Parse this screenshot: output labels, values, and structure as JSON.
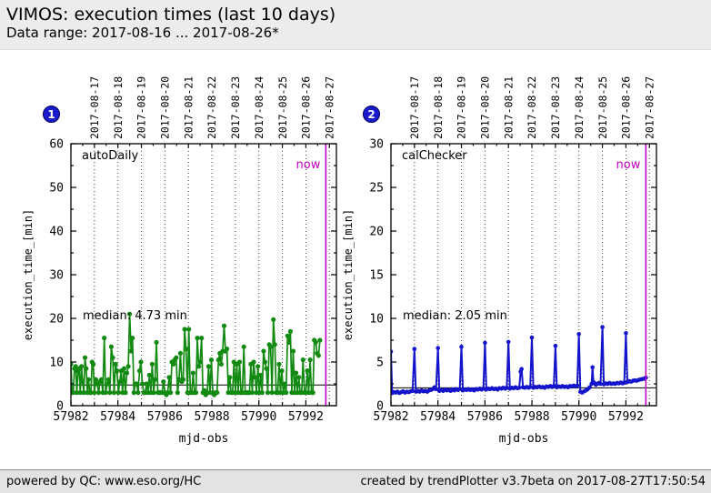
{
  "header": {
    "title": "VIMOS: execution times (last 10 days)",
    "subtitle": "Data range: 2017-08-16 ... 2017-08-26*"
  },
  "footer": {
    "left": "powered by QC: www.eso.org/HC",
    "right": "created by trendPlotter v3.7beta on 2017-08-27T17:50:54"
  },
  "ui": {
    "band_bg": "#ececec",
    "footer_bg": "#e3e3e3",
    "badge_color": "#1a1acc",
    "now_color": "#bf00bf",
    "green": "#128a12",
    "blue": "#1414cc"
  },
  "chart_data": [
    {
      "type": "line",
      "badge": "1",
      "series_label": "autoDaily",
      "xlabel": "mjd-obs",
      "ylabel": "execution_time_[min]",
      "xlim": [
        57982,
        57993.3
      ],
      "ylim": [
        0,
        60
      ],
      "ytick_step": 10,
      "xtick_values": [
        57982,
        57984,
        57986,
        57988,
        57990,
        57992
      ],
      "date_labels": [
        "2017-08-17",
        "2017-08-18",
        "2017-08-19",
        "2017-08-20",
        "2017-08-21",
        "2017-08-22",
        "2017-08-23",
        "2017-08-24",
        "2017-08-25",
        "2017-08-26",
        "2017-08-27"
      ],
      "median_value": 4.73,
      "median_text": "median: 4.73 min",
      "now_text": "now",
      "now_x": 57992.85,
      "line_color": "#128a12",
      "grid": "vertical-dotted",
      "points": [
        [
          57982.0,
          9.5
        ],
        [
          57982.05,
          3
        ],
        [
          57982.1,
          3
        ],
        [
          57982.15,
          8.5
        ],
        [
          57982.2,
          9
        ],
        [
          57982.25,
          3
        ],
        [
          57982.3,
          8
        ],
        [
          57982.35,
          8.5
        ],
        [
          57982.4,
          3
        ],
        [
          57982.45,
          9
        ],
        [
          57982.5,
          5.5
        ],
        [
          57982.55,
          3
        ],
        [
          57982.6,
          11
        ],
        [
          57982.65,
          8.5
        ],
        [
          57982.7,
          3
        ],
        [
          57982.75,
          6
        ],
        [
          57982.8,
          3
        ],
        [
          57982.85,
          3
        ],
        [
          57982.9,
          10
        ],
        [
          57982.95,
          9.5
        ],
        [
          57983.0,
          3
        ],
        [
          57983.06,
          6
        ],
        [
          57983.12,
          5
        ],
        [
          57983.18,
          3
        ],
        [
          57983.24,
          5.5
        ],
        [
          57983.3,
          6
        ],
        [
          57983.36,
          3
        ],
        [
          57983.42,
          15.5
        ],
        [
          57983.48,
          3
        ],
        [
          57983.54,
          5
        ],
        [
          57983.6,
          6
        ],
        [
          57983.66,
          3
        ],
        [
          57983.72,
          13.5
        ],
        [
          57983.78,
          11
        ],
        [
          57983.84,
          3
        ],
        [
          57983.9,
          9.5
        ],
        [
          57983.96,
          8
        ],
        [
          57984.02,
          3
        ],
        [
          57984.08,
          5.5
        ],
        [
          57984.14,
          8
        ],
        [
          57984.2,
          3
        ],
        [
          57984.26,
          8.5
        ],
        [
          57984.32,
          3
        ],
        [
          57984.38,
          7.5
        ],
        [
          57984.44,
          9
        ],
        [
          57984.5,
          21
        ],
        [
          57984.56,
          12.5
        ],
        [
          57984.62,
          15.5
        ],
        [
          57984.68,
          3
        ],
        [
          57984.74,
          5
        ],
        [
          57984.8,
          5
        ],
        [
          57984.86,
          3
        ],
        [
          57984.92,
          8
        ],
        [
          57984.98,
          10
        ],
        [
          57985.04,
          5
        ],
        [
          57985.1,
          3
        ],
        [
          57985.16,
          3
        ],
        [
          57985.22,
          5
        ],
        [
          57985.28,
          3
        ],
        [
          57985.34,
          7
        ],
        [
          57985.4,
          3
        ],
        [
          57985.46,
          9.5
        ],
        [
          57985.52,
          3
        ],
        [
          57985.58,
          6
        ],
        [
          57985.64,
          14.5
        ],
        [
          57985.7,
          3
        ],
        [
          57985.76,
          3
        ],
        [
          57985.82,
          3
        ],
        [
          57985.88,
          3
        ],
        [
          57985.94,
          5.5
        ],
        [
          57986.0,
          3
        ],
        [
          57986.06,
          2.5
        ],
        [
          57986.12,
          3
        ],
        [
          57986.18,
          6.5
        ],
        [
          57986.24,
          3
        ],
        [
          57986.3,
          10
        ],
        [
          57986.36,
          9.5
        ],
        [
          57986.42,
          10.5
        ],
        [
          57986.48,
          11
        ],
        [
          57986.54,
          3
        ],
        [
          57986.6,
          6
        ],
        [
          57986.66,
          12
        ],
        [
          57986.72,
          5.5
        ],
        [
          57986.78,
          6
        ],
        [
          57986.84,
          17.5
        ],
        [
          57986.9,
          13
        ],
        [
          57986.96,
          3
        ],
        [
          57987.02,
          17.5
        ],
        [
          57987.08,
          3
        ],
        [
          57987.14,
          3
        ],
        [
          57987.2,
          7.5
        ],
        [
          57987.26,
          3
        ],
        [
          57987.32,
          3
        ],
        [
          57987.38,
          15.5
        ],
        [
          57987.44,
          9
        ],
        [
          57987.5,
          10
        ],
        [
          57987.56,
          15.5
        ],
        [
          57987.62,
          3
        ],
        [
          57987.68,
          3.5
        ],
        [
          57987.74,
          2.5
        ],
        [
          57987.8,
          3
        ],
        [
          57987.86,
          9
        ],
        [
          57987.92,
          3
        ],
        [
          57987.98,
          10.5
        ],
        [
          57988.04,
          3
        ],
        [
          57988.1,
          2.5
        ],
        [
          57988.16,
          3
        ],
        [
          57988.22,
          3
        ],
        [
          57988.28,
          10.5
        ],
        [
          57988.34,
          12
        ],
        [
          57988.4,
          9.5
        ],
        [
          57988.46,
          12.5
        ],
        [
          57988.52,
          18.3
        ],
        [
          57988.58,
          12.5
        ],
        [
          57988.64,
          13
        ],
        [
          57988.7,
          3
        ],
        [
          57988.76,
          6.5
        ],
        [
          57988.82,
          3
        ],
        [
          57988.88,
          3
        ],
        [
          57988.94,
          10
        ],
        [
          57989.0,
          3
        ],
        [
          57989.06,
          9.5
        ],
        [
          57989.12,
          3
        ],
        [
          57989.18,
          10
        ],
        [
          57989.24,
          3
        ],
        [
          57989.3,
          3
        ],
        [
          57989.36,
          13.5
        ],
        [
          57989.42,
          3
        ],
        [
          57989.48,
          3
        ],
        [
          57989.54,
          3
        ],
        [
          57989.6,
          3
        ],
        [
          57989.66,
          9.5
        ],
        [
          57989.72,
          3
        ],
        [
          57989.78,
          10
        ],
        [
          57989.84,
          6.5
        ],
        [
          57989.9,
          3
        ],
        [
          57989.96,
          9
        ],
        [
          57990.02,
          3
        ],
        [
          57990.08,
          7
        ],
        [
          57990.14,
          3
        ],
        [
          57990.2,
          12.5
        ],
        [
          57990.26,
          10
        ],
        [
          57990.32,
          8.5
        ],
        [
          57990.38,
          3
        ],
        [
          57990.44,
          14
        ],
        [
          57990.5,
          13.5
        ],
        [
          57990.56,
          3
        ],
        [
          57990.62,
          19.7
        ],
        [
          57990.68,
          14
        ],
        [
          57990.74,
          3
        ],
        [
          57990.8,
          3
        ],
        [
          57990.86,
          9.5
        ],
        [
          57990.92,
          3
        ],
        [
          57990.98,
          8
        ],
        [
          57991.04,
          3
        ],
        [
          57991.1,
          5
        ],
        [
          57991.16,
          3
        ],
        [
          57991.22,
          16
        ],
        [
          57991.28,
          14.5
        ],
        [
          57991.34,
          17
        ],
        [
          57991.4,
          3
        ],
        [
          57991.46,
          12.5
        ],
        [
          57991.52,
          3
        ],
        [
          57991.58,
          7.5
        ],
        [
          57991.64,
          3
        ],
        [
          57991.7,
          6.5
        ],
        [
          57991.76,
          3
        ],
        [
          57991.82,
          3
        ],
        [
          57991.88,
          10.5
        ],
        [
          57991.94,
          3
        ],
        [
          57992.0,
          3
        ],
        [
          57992.06,
          8
        ],
        [
          57992.12,
          3
        ],
        [
          57992.18,
          10.5
        ],
        [
          57992.24,
          3
        ],
        [
          57992.3,
          3
        ],
        [
          57992.36,
          15
        ],
        [
          57992.42,
          14.5
        ],
        [
          57992.48,
          12
        ],
        [
          57992.54,
          11.5
        ],
        [
          57992.6,
          15
        ]
      ]
    },
    {
      "type": "line",
      "badge": "2",
      "series_label": "calChecker",
      "xlabel": "mjd-obs",
      "ylabel": "execution_time_[min]",
      "xlim": [
        57982,
        57993.3
      ],
      "ylim": [
        0,
        30
      ],
      "ytick_step": 5,
      "xtick_values": [
        57982,
        57984,
        57986,
        57988,
        57990,
        57992
      ],
      "date_labels": [
        "2017-08-17",
        "2017-08-18",
        "2017-08-19",
        "2017-08-20",
        "2017-08-21",
        "2017-08-22",
        "2017-08-23",
        "2017-08-24",
        "2017-08-25",
        "2017-08-26",
        "2017-08-27"
      ],
      "median_value": 2.05,
      "median_text": "median: 2.05 min",
      "now_text": "now",
      "now_x": 57992.85,
      "line_color": "#1414cc",
      "grid": "vertical-dotted",
      "points": [
        [
          57982.0,
          6.2
        ],
        [
          57982.05,
          1.45
        ],
        [
          57982.12,
          1.55
        ],
        [
          57982.2,
          1.5
        ],
        [
          57982.28,
          1.6
        ],
        [
          57982.36,
          1.45
        ],
        [
          57982.44,
          1.55
        ],
        [
          57982.52,
          1.65
        ],
        [
          57982.6,
          1.5
        ],
        [
          57982.68,
          1.6
        ],
        [
          57982.76,
          1.55
        ],
        [
          57982.84,
          1.65
        ],
        [
          57982.92,
          1.7
        ],
        [
          57983.0,
          6.5
        ],
        [
          57983.06,
          1.6
        ],
        [
          57983.14,
          1.7
        ],
        [
          57983.22,
          1.6
        ],
        [
          57983.3,
          1.75
        ],
        [
          57983.38,
          1.65
        ],
        [
          57983.46,
          1.7
        ],
        [
          57983.54,
          1.6
        ],
        [
          57983.62,
          1.75
        ],
        [
          57983.7,
          1.8
        ],
        [
          57983.78,
          1.9
        ],
        [
          57983.85,
          2.1
        ],
        [
          57983.92,
          1.9
        ],
        [
          57984.0,
          6.6
        ],
        [
          57984.06,
          1.7
        ],
        [
          57984.14,
          1.8
        ],
        [
          57984.22,
          1.7
        ],
        [
          57984.3,
          1.85
        ],
        [
          57984.38,
          1.75
        ],
        [
          57984.46,
          1.8
        ],
        [
          57984.54,
          1.7
        ],
        [
          57984.62,
          1.85
        ],
        [
          57984.7,
          1.75
        ],
        [
          57984.78,
          1.9
        ],
        [
          57984.86,
          1.8
        ],
        [
          57984.93,
          1.9
        ],
        [
          57985.0,
          6.75
        ],
        [
          57985.06,
          1.75
        ],
        [
          57985.14,
          1.85
        ],
        [
          57985.22,
          1.8
        ],
        [
          57985.3,
          1.9
        ],
        [
          57985.38,
          1.8
        ],
        [
          57985.46,
          1.85
        ],
        [
          57985.54,
          1.75
        ],
        [
          57985.62,
          1.9
        ],
        [
          57985.7,
          1.85
        ],
        [
          57985.78,
          1.95
        ],
        [
          57985.86,
          1.85
        ],
        [
          57985.93,
          1.95
        ],
        [
          57986.0,
          7.2
        ],
        [
          57986.06,
          1.85
        ],
        [
          57986.14,
          1.95
        ],
        [
          57986.22,
          1.9
        ],
        [
          57986.3,
          2.0
        ],
        [
          57986.38,
          1.9
        ],
        [
          57986.46,
          1.95
        ],
        [
          57986.54,
          1.85
        ],
        [
          57986.62,
          2.0
        ],
        [
          57986.7,
          1.95
        ],
        [
          57986.78,
          2.05
        ],
        [
          57986.86,
          1.95
        ],
        [
          57986.93,
          2.05
        ],
        [
          57987.0,
          7.3
        ],
        [
          57987.06,
          1.95
        ],
        [
          57987.14,
          2.05
        ],
        [
          57987.22,
          2.0
        ],
        [
          57987.3,
          2.1
        ],
        [
          57987.38,
          2.0
        ],
        [
          57987.46,
          2.05
        ],
        [
          57987.52,
          3.9
        ],
        [
          57987.56,
          4.2
        ],
        [
          57987.62,
          2.1
        ],
        [
          57987.7,
          2.05
        ],
        [
          57987.78,
          2.15
        ],
        [
          57987.86,
          2.05
        ],
        [
          57987.93,
          2.15
        ],
        [
          57988.0,
          7.8
        ],
        [
          57988.06,
          2.05
        ],
        [
          57988.14,
          2.15
        ],
        [
          57988.22,
          2.1
        ],
        [
          57988.3,
          2.2
        ],
        [
          57988.38,
          2.1
        ],
        [
          57988.46,
          2.15
        ],
        [
          57988.54,
          2.05
        ],
        [
          57988.62,
          2.2
        ],
        [
          57988.7,
          2.15
        ],
        [
          57988.78,
          2.25
        ],
        [
          57988.86,
          2.15
        ],
        [
          57988.93,
          2.25
        ],
        [
          57989.0,
          6.85
        ],
        [
          57989.06,
          2.1
        ],
        [
          57989.14,
          2.2
        ],
        [
          57989.22,
          2.15
        ],
        [
          57989.3,
          2.25
        ],
        [
          57989.38,
          2.15
        ],
        [
          57989.46,
          2.2
        ],
        [
          57989.54,
          2.1
        ],
        [
          57989.62,
          2.25
        ],
        [
          57989.7,
          2.2
        ],
        [
          57989.78,
          2.3
        ],
        [
          57989.86,
          2.2
        ],
        [
          57989.93,
          2.3
        ],
        [
          57990.0,
          8.2
        ],
        [
          57990.06,
          1.6
        ],
        [
          57990.14,
          1.5
        ],
        [
          57990.22,
          1.65
        ],
        [
          57990.3,
          1.75
        ],
        [
          57990.38,
          1.9
        ],
        [
          57990.46,
          2.1
        ],
        [
          57990.54,
          2.5
        ],
        [
          57990.58,
          4.4
        ],
        [
          57990.62,
          2.7
        ],
        [
          57990.66,
          2.6
        ],
        [
          57990.72,
          2.4
        ],
        [
          57990.78,
          2.5
        ],
        [
          57990.85,
          2.6
        ],
        [
          57990.92,
          2.5
        ],
        [
          57991.0,
          9.0
        ],
        [
          57991.06,
          2.45
        ],
        [
          57991.14,
          2.55
        ],
        [
          57991.22,
          2.5
        ],
        [
          57991.3,
          2.6
        ],
        [
          57991.38,
          2.5
        ],
        [
          57991.46,
          2.55
        ],
        [
          57991.54,
          2.5
        ],
        [
          57991.62,
          2.6
        ],
        [
          57991.7,
          2.55
        ],
        [
          57991.78,
          2.65
        ],
        [
          57991.86,
          2.55
        ],
        [
          57991.93,
          2.65
        ],
        [
          57992.0,
          8.3
        ],
        [
          57992.06,
          2.7
        ],
        [
          57992.14,
          2.8
        ],
        [
          57992.22,
          2.75
        ],
        [
          57992.3,
          2.85
        ],
        [
          57992.38,
          2.9
        ],
        [
          57992.46,
          2.85
        ],
        [
          57992.54,
          2.95
        ],
        [
          57992.62,
          3.0
        ],
        [
          57992.7,
          3.05
        ],
        [
          57992.78,
          3.1
        ],
        [
          57992.85,
          3.2
        ]
      ]
    }
  ]
}
